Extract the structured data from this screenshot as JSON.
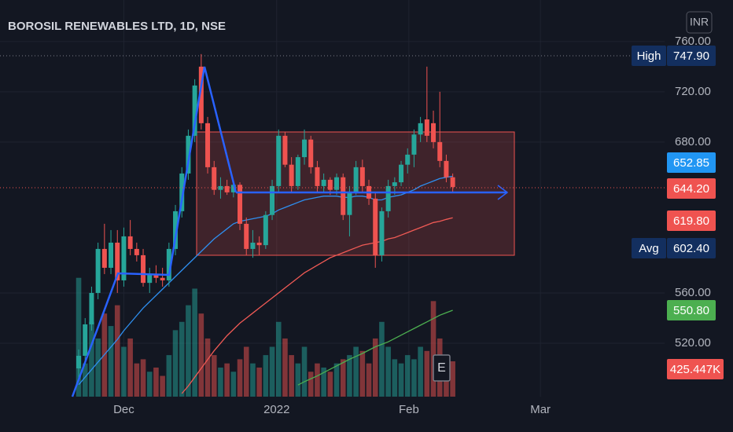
{
  "chart_data": {
    "type": "candlestick",
    "title": "BOROSIL RENEWABLES LTD, 1D, NSE",
    "currency": "INR",
    "event_marker": "E",
    "grid": true,
    "up_color": "#26a69a",
    "down_color": "#ef5350",
    "ylim": [
      477.5,
      793
    ],
    "yticks": [
      {
        "value": 520,
        "label": "520.00"
      },
      {
        "value": 560,
        "label": "560.00"
      },
      {
        "value": 680,
        "label": "680.00"
      },
      {
        "value": 720,
        "label": "720.00"
      },
      {
        "value": 760,
        "label": "760.00"
      }
    ],
    "xlim": [
      -12.2,
      90.85
    ],
    "xticks": [
      {
        "value": 7,
        "label": "Dec"
      },
      {
        "value": 30.7,
        "label": "2022"
      },
      {
        "value": 51.2,
        "label": "Feb"
      },
      {
        "value": 71.6,
        "label": "Mar"
      }
    ],
    "candles": [
      {
        "o": 500,
        "h": 515,
        "l": 490,
        "c": 510
      },
      {
        "o": 510,
        "h": 540,
        "l": 505,
        "c": 535
      },
      {
        "o": 535,
        "h": 565,
        "l": 530,
        "c": 560
      },
      {
        "o": 560,
        "h": 600,
        "l": 555,
        "c": 595
      },
      {
        "o": 595,
        "h": 615,
        "l": 575,
        "c": 580
      },
      {
        "o": 580,
        "h": 610,
        "l": 575,
        "c": 600
      },
      {
        "o": 600,
        "h": 610,
        "l": 560,
        "c": 570
      },
      {
        "o": 570,
        "h": 612,
        "l": 565,
        "c": 605
      },
      {
        "o": 605,
        "h": 618,
        "l": 590,
        "c": 595
      },
      {
        "o": 595,
        "h": 600,
        "l": 585,
        "c": 590
      },
      {
        "o": 590,
        "h": 595,
        "l": 565,
        "c": 568
      },
      {
        "o": 568,
        "h": 580,
        "l": 560,
        "c": 575
      },
      {
        "o": 575,
        "h": 582,
        "l": 568,
        "c": 572
      },
      {
        "o": 572,
        "h": 580,
        "l": 565,
        "c": 570
      },
      {
        "o": 570,
        "h": 600,
        "l": 565,
        "c": 595
      },
      {
        "o": 595,
        "h": 630,
        "l": 590,
        "c": 625
      },
      {
        "o": 625,
        "h": 660,
        "l": 620,
        "c": 655
      },
      {
        "o": 655,
        "h": 690,
        "l": 650,
        "c": 685
      },
      {
        "o": 685,
        "h": 730,
        "l": 680,
        "c": 725
      },
      {
        "o": 740,
        "h": 750,
        "l": 690,
        "c": 695
      },
      {
        "o": 695,
        "h": 700,
        "l": 655,
        "c": 660
      },
      {
        "o": 660,
        "h": 665,
        "l": 638,
        "c": 642
      },
      {
        "o": 642,
        "h": 652,
        "l": 635,
        "c": 645
      },
      {
        "o": 645,
        "h": 650,
        "l": 638,
        "c": 640
      },
      {
        "o": 640,
        "h": 648,
        "l": 636,
        "c": 646
      },
      {
        "o": 646,
        "h": 648,
        "l": 610,
        "c": 615
      },
      {
        "o": 615,
        "h": 620,
        "l": 590,
        "c": 595
      },
      {
        "o": 595,
        "h": 610,
        "l": 588,
        "c": 600
      },
      {
        "o": 600,
        "h": 605,
        "l": 590,
        "c": 598
      },
      {
        "o": 598,
        "h": 625,
        "l": 595,
        "c": 622
      },
      {
        "o": 622,
        "h": 650,
        "l": 618,
        "c": 645
      },
      {
        "o": 645,
        "h": 690,
        "l": 640,
        "c": 685
      },
      {
        "o": 685,
        "h": 688,
        "l": 660,
        "c": 662
      },
      {
        "o": 662,
        "h": 668,
        "l": 640,
        "c": 645
      },
      {
        "o": 645,
        "h": 670,
        "l": 642,
        "c": 668
      },
      {
        "o": 668,
        "h": 690,
        "l": 662,
        "c": 682
      },
      {
        "o": 682,
        "h": 685,
        "l": 655,
        "c": 660
      },
      {
        "o": 660,
        "h": 665,
        "l": 640,
        "c": 645
      },
      {
        "o": 645,
        "h": 655,
        "l": 640,
        "c": 650
      },
      {
        "o": 650,
        "h": 652,
        "l": 638,
        "c": 642
      },
      {
        "o": 642,
        "h": 655,
        "l": 638,
        "c": 652
      },
      {
        "o": 652,
        "h": 655,
        "l": 618,
        "c": 622
      },
      {
        "o": 622,
        "h": 645,
        "l": 605,
        "c": 640
      },
      {
        "o": 640,
        "h": 665,
        "l": 638,
        "c": 660
      },
      {
        "o": 660,
        "h": 666,
        "l": 640,
        "c": 645
      },
      {
        "o": 645,
        "h": 650,
        "l": 630,
        "c": 635
      },
      {
        "o": 635,
        "h": 640,
        "l": 580,
        "c": 590
      },
      {
        "o": 590,
        "h": 628,
        "l": 585,
        "c": 625
      },
      {
        "o": 625,
        "h": 650,
        "l": 620,
        "c": 645
      },
      {
        "o": 645,
        "h": 652,
        "l": 638,
        "c": 648
      },
      {
        "o": 648,
        "h": 665,
        "l": 645,
        "c": 662
      },
      {
        "o": 662,
        "h": 675,
        "l": 655,
        "c": 670
      },
      {
        "o": 670,
        "h": 690,
        "l": 660,
        "c": 686
      },
      {
        "o": 686,
        "h": 700,
        "l": 680,
        "c": 695
      },
      {
        "o": 698,
        "h": 740,
        "l": 680,
        "c": 685
      },
      {
        "o": 695,
        "h": 705,
        "l": 675,
        "c": 680
      },
      {
        "o": 680,
        "h": 720,
        "l": 660,
        "c": 665
      },
      {
        "o": 665,
        "h": 670,
        "l": 648,
        "c": 652
      },
      {
        "o": 652,
        "h": 655,
        "l": 640,
        "c": 644.2
      }
    ],
    "volume_lim": [
      0,
      5000
    ],
    "volume": [
      1430,
      400,
      900,
      700,
      1000,
      850,
      1100,
      600,
      700,
      400,
      450,
      300,
      350,
      250,
      500,
      800,
      900,
      1100,
      1300,
      1000,
      700,
      500,
      350,
      400,
      300,
      450,
      600,
      400,
      350,
      500,
      600,
      900,
      700,
      500,
      400,
      600,
      300,
      400,
      350,
      300,
      400,
      450,
      500,
      600,
      550,
      400,
      700,
      900,
      600,
      450,
      400,
      500,
      450,
      600,
      550,
      1150,
      700,
      500,
      425.447
    ],
    "ma": [
      {
        "color": "#2e8ff0",
        "values": [
          487,
          493,
          499,
          505,
          511,
          517,
          523,
          530,
          536,
          542,
          548,
          553,
          558,
          563,
          568,
          573,
          578,
          583,
          588,
          593,
          598,
          603,
          607,
          611,
          615,
          617,
          618,
          619,
          620,
          621,
          623,
          626,
          628,
          630,
          632,
          634,
          635,
          636,
          637,
          637,
          637,
          636,
          636,
          637,
          637,
          636,
          634,
          634,
          636,
          637,
          638,
          640,
          642,
          645,
          647,
          649,
          651,
          652,
          652.85
        ]
      },
      {
        "color": "#f05a55",
        "values": [
          null,
          null,
          null,
          null,
          null,
          null,
          null,
          null,
          null,
          null,
          null,
          null,
          null,
          null,
          null,
          null,
          480,
          486,
          493,
          500,
          507,
          514,
          520,
          526,
          531,
          536,
          540,
          544,
          548,
          552,
          556,
          560,
          564,
          568,
          572,
          576,
          579,
          582,
          585,
          588,
          590,
          592,
          594,
          596,
          598,
          599,
          600,
          601,
          603,
          604,
          606,
          608,
          610,
          612,
          614,
          616,
          617,
          618.5,
          619.8
        ]
      },
      {
        "color": "#4caf50",
        "axis": "volume",
        "values": [
          null,
          null,
          null,
          null,
          null,
          null,
          null,
          null,
          null,
          null,
          null,
          null,
          null,
          null,
          null,
          null,
          null,
          null,
          null,
          null,
          null,
          null,
          null,
          null,
          null,
          null,
          null,
          null,
          null,
          null,
          null,
          null,
          null,
          null,
          140,
          180,
          215,
          250,
          290,
          330,
          370,
          410,
          450,
          485,
          520,
          560,
          600,
          630,
          660,
          700,
          740,
          780,
          820,
          860,
          900,
          940,
          980,
          1010,
          1040
        ]
      }
    ],
    "price_labels": [
      {
        "tag": "High",
        "label": "747.90",
        "color": "#132f5f"
      },
      {
        "label": "652.85",
        "color": "#2196f3"
      },
      {
        "label": "644.20",
        "color": "#ef5350"
      },
      {
        "label": "619.80",
        "color": "#ef5350"
      },
      {
        "tag": "Avg",
        "label": "602.40",
        "color": "#132f5f"
      },
      {
        "label": "550.80",
        "color": "#4caf50"
      },
      {
        "label": "425.447K",
        "color": "#ef5350"
      }
    ]
  }
}
